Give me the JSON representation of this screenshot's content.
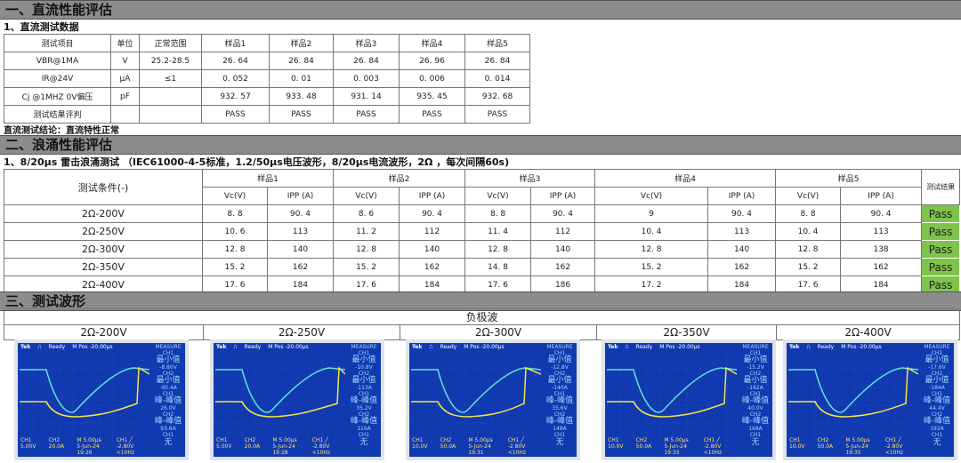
{
  "section1": {
    "title": "一、直流性能评估",
    "subtitle": "1、直流测试数据",
    "headers": [
      "测试项目",
      "单位",
      "正常范围",
      "样品1",
      "样品2",
      "样品3",
      "样品4",
      "样品5"
    ],
    "rows": [
      [
        "VBR@1MA",
        "V",
        "25.2-28.5",
        "26. 64",
        "26. 84",
        "26. 84",
        "26. 96",
        "26. 84"
      ],
      [
        "IR@24V",
        "μA",
        "≤1",
        "0. 052",
        "0. 01",
        "0. 003",
        "0. 006",
        "0. 014"
      ],
      [
        "Cj @1MHZ 0V偏压",
        "pF",
        "",
        "932. 57",
        "933. 48",
        "931. 14",
        "935. 45",
        "932. 68"
      ],
      [
        "测试结果评判",
        "",
        "",
        "PASS",
        "PASS",
        "PASS",
        "PASS",
        "PASS"
      ]
    ],
    "conclusion": "直流测试结论：直流特性正常"
  },
  "section2": {
    "title": "二、浪涌性能评估",
    "subtitle": "1、8/20μs 雷击浪涌测试 （IEC61000-4-5标准，1.2/50μs电压波形，8/20μs电流波形，2Ω ，每次间隔60s)",
    "cond_header": "测试条件(-)",
    "samples": [
      "样品1",
      "样品2",
      "样品3",
      "样品4",
      "样品5"
    ],
    "vc": "Vc(V)",
    "ipp": "IPP (A)",
    "result_header": "测试结果",
    "rows": [
      {
        "cond": "2Ω-200V",
        "vals": [
          "8. 8",
          "90. 4",
          "8. 6",
          "90. 4",
          "8. 8",
          "90. 4",
          "9",
          "90. 4",
          "8. 8",
          "90. 4"
        ],
        "result": "Pass"
      },
      {
        "cond": "2Ω-250V",
        "vals": [
          "10. 6",
          "113",
          "11. 2",
          "112",
          "11. 4",
          "112",
          "10. 4",
          "113",
          "10. 4",
          "113"
        ],
        "result": "Pass"
      },
      {
        "cond": "2Ω-300V",
        "vals": [
          "12. 8",
          "140",
          "12. 8",
          "140",
          "12. 8",
          "140",
          "12. 8",
          "140",
          "12. 8",
          "138"
        ],
        "result": "Pass"
      },
      {
        "cond": "2Ω-350V",
        "vals": [
          "15. 2",
          "162",
          "15. 2",
          "162",
          "14. 8",
          "162",
          "15. 2",
          "162",
          "15. 2",
          "162"
        ],
        "result": "Pass"
      },
      {
        "cond": "2Ω-400V",
        "vals": [
          "17. 6",
          "184",
          "17. 6",
          "184",
          "17. 6",
          "186",
          "17. 2",
          "184",
          "17. 6",
          "184"
        ],
        "result": "Pass"
      }
    ],
    "pass_color": "#7ec34a"
  },
  "section3": {
    "title": "三、测试波形",
    "polarity": "负极波",
    "labels": [
      "2Ω-200V",
      "2Ω-250V",
      "2Ω-300V",
      "2Ω-350V",
      "2Ω-400V"
    ],
    "scopes": [
      {
        "brand": "Tek",
        "status": "Ready",
        "mpos": "M Pos -20.00μs",
        "measure": "MEASURE",
        "ch1": "CH1",
        "ch2": "CH2",
        "min": "最小值",
        "pp": "峰-峰值",
        "none": "无",
        "ch1min": "-8.80V",
        "ch2min": "-90.4A",
        "ch1pp": "26.0V",
        "ch2pp": "93.6A",
        "ch1scale": "CH1 5.00V",
        "ch2scale": "CH2 20.0A",
        "time": "M 5.00μs",
        "date": "5-Jun-24 19:26",
        "trig": "CH1 ╱ -2.80V",
        "freq": "<10Hz"
      },
      {
        "brand": "Tek",
        "status": "Ready",
        "mpos": "M Pos -20.00μs",
        "measure": "MEASURE",
        "ch1": "CH1",
        "ch2": "CH2",
        "min": "最小值",
        "pp": "峰-峰值",
        "none": "无",
        "ch1min": "-10.8V",
        "ch2min": "-113A",
        "ch1pp": "35.2V",
        "ch2pp": "116A",
        "ch1scale": "CH1 5.00V",
        "ch2scale": "CH2 20.0A",
        "time": "M 5.00μs",
        "date": "5-Jun-24 19:28",
        "trig": "CH1 ╱ -2.80V",
        "freq": "<10Hz"
      },
      {
        "brand": "Tek",
        "status": "Ready",
        "mpos": "M Pos -20.00μs",
        "measure": "MEASURE",
        "ch1": "CH1",
        "ch2": "CH2",
        "min": "最小值",
        "pp": "峰-峰值",
        "none": "无",
        "ch1min": "-12.8V",
        "ch2min": "-140A",
        "ch1pp": "35.6V",
        "ch2pp": "148A",
        "ch1scale": "CH1 10.0V",
        "ch2scale": "CH2 50.0A",
        "time": "M 5.00μs",
        "date": "5-Jun-24 19:31",
        "trig": "CH1 ╱ -2.80V",
        "freq": "<10Hz"
      },
      {
        "brand": "Tek",
        "status": "Ready",
        "mpos": "M Pos -20.00μs",
        "measure": "MEASURE",
        "ch1": "CH1",
        "ch2": "CH2",
        "min": "最小值",
        "pp": "峰-峰值",
        "none": "无",
        "ch1min": "-15.2V",
        "ch2min": "-162A",
        "ch1pp": "40.0V",
        "ch2pp": "168A",
        "ch1scale": "CH1 10.0V",
        "ch2scale": "CH2 50.0A",
        "time": "M 5.00μs",
        "date": "5-Jun-24 19:33",
        "trig": "CH1 ╱ -2.80V",
        "freq": "<10Hz"
      },
      {
        "brand": "Tek",
        "status": "Ready",
        "mpos": "M Pos -20.00μs",
        "measure": "MEASURE",
        "ch1": "CH1",
        "ch2": "CH2",
        "min": "最小值",
        "pp": "峰-峰值",
        "none": "无",
        "ch1min": "-17.6V",
        "ch2min": "-184A",
        "ch1pp": "44.4V",
        "ch2pp": "192A",
        "ch1scale": "CH1 10.0V",
        "ch2scale": "CH2 50.0A",
        "time": "M 5.00μs",
        "date": "5-Jun-24 19:35",
        "trig": "CH1 ╱ -2.80V",
        "freq": "<10Hz"
      }
    ]
  }
}
